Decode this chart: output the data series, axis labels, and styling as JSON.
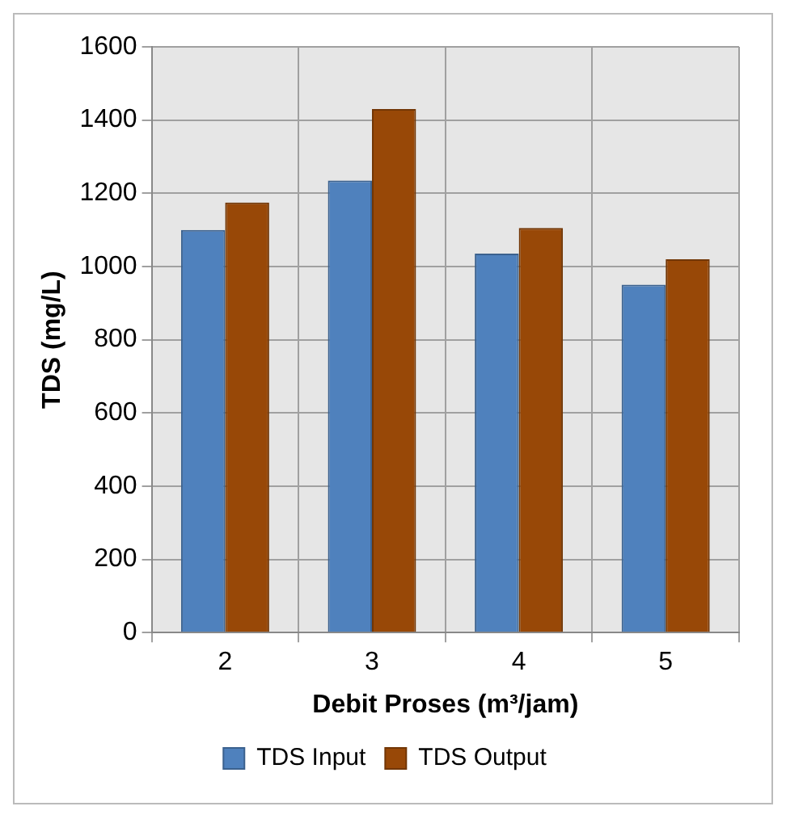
{
  "chart_data": {
    "type": "bar",
    "xlabel": "Debit Proses (m³/jam)",
    "ylabel": "TDS (mg/L)",
    "categories": [
      "2",
      "3",
      "4",
      "5"
    ],
    "series": [
      {
        "name": "TDS Input",
        "color": "#4f81bd",
        "values": [
          1100,
          1235,
          1035,
          950
        ]
      },
      {
        "name": "TDS Output",
        "color": "#984807",
        "values": [
          1175,
          1430,
          1105,
          1020
        ]
      }
    ],
    "ylim": [
      0,
      1600
    ],
    "yticks": [
      0,
      200,
      400,
      600,
      800,
      1000,
      1200,
      1400,
      1600
    ],
    "grid": true,
    "legend": "bottom"
  }
}
